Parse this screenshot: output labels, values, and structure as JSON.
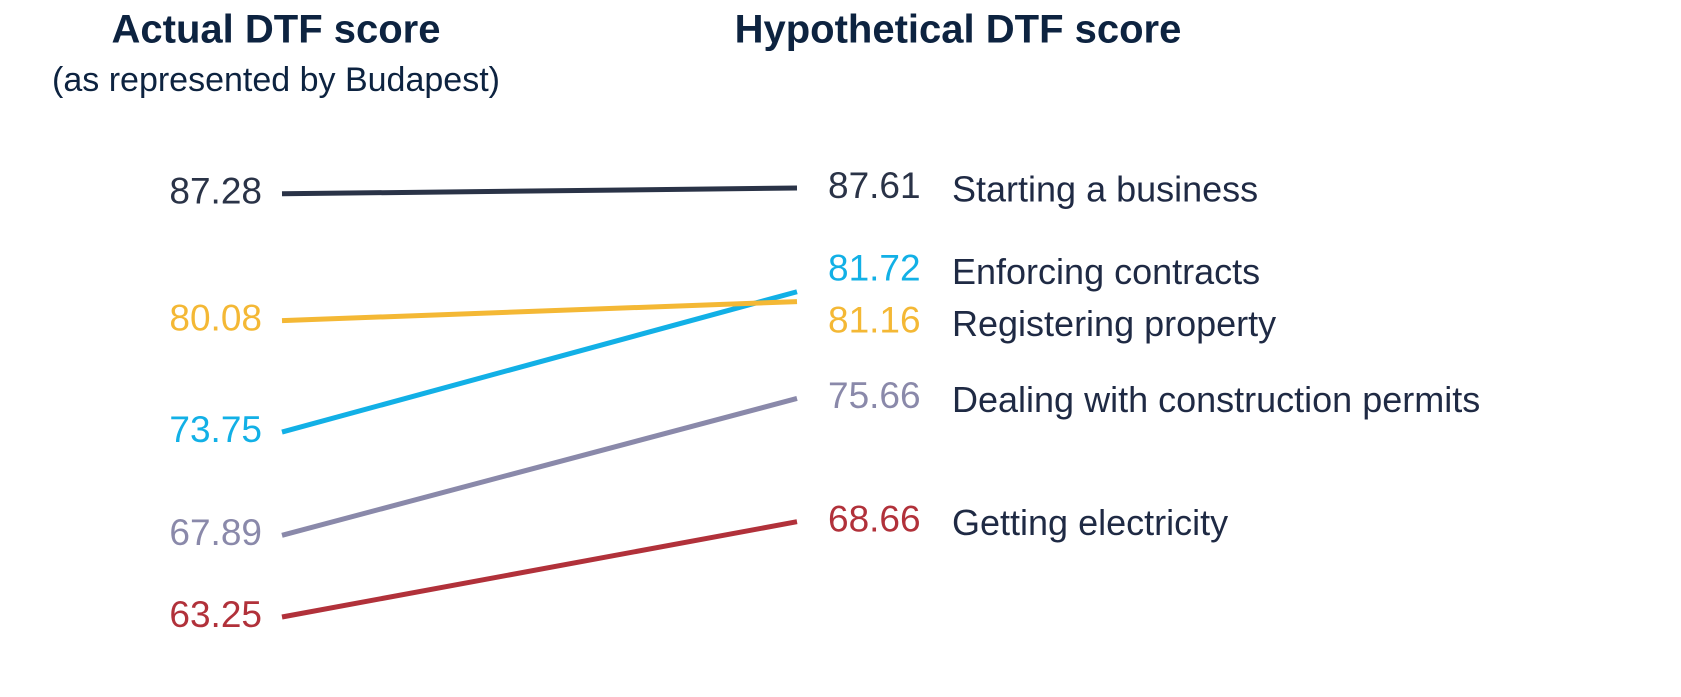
{
  "chart_data": {
    "type": "slope",
    "categories": [
      "Actual DTF score",
      "Hypothetical DTF score"
    ],
    "subtitle": "(as represented by Budapest)",
    "series": [
      {
        "name": "Starting a business",
        "color": "#2a3347",
        "values": [
          87.28,
          87.61
        ]
      },
      {
        "name": "Enforcing contracts",
        "color": "#12b0e6",
        "values": [
          73.75,
          81.72
        ]
      },
      {
        "name": "Registering property",
        "color": "#f4b835",
        "values": [
          80.08,
          81.16
        ]
      },
      {
        "name": "Dealing with construction permits",
        "color": "#8a89aa",
        "values": [
          67.89,
          75.66
        ]
      },
      {
        "name": "Getting electricity",
        "color": "#b1313a",
        "values": [
          63.25,
          68.66
        ]
      }
    ]
  }
}
